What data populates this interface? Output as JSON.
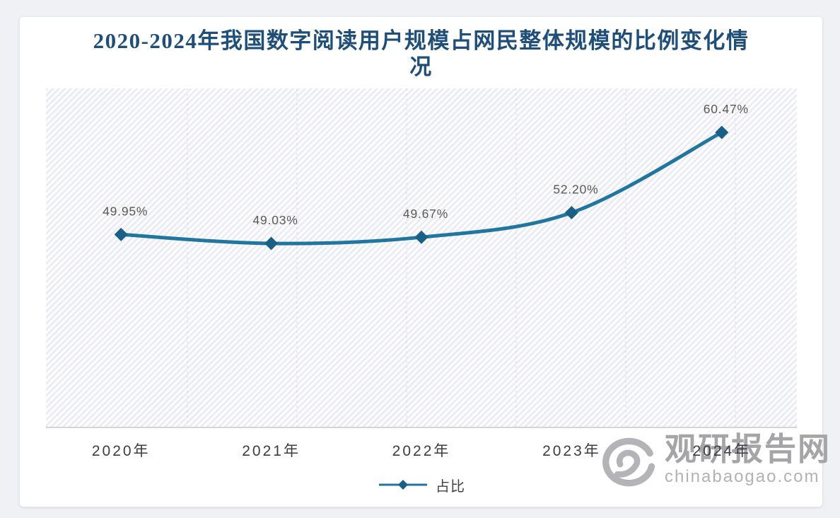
{
  "page": {
    "background_color": "#eff1f5",
    "card_background_color": "#ffffff"
  },
  "chart_data": {
    "type": "line",
    "title": "2020-2024年我国数字阅读用户规模占网民整体规模的比例变化情况",
    "categories": [
      "2020年",
      "2021年",
      "2022年",
      "2023年",
      "2024年"
    ],
    "series": [
      {
        "name": "占比",
        "values": [
          49.95,
          49.03,
          49.67,
          52.2,
          60.47
        ],
        "labels": [
          "49.95%",
          "49.03%",
          "49.67%",
          "52.20%",
          "60.47%"
        ]
      }
    ],
    "xlabel": "",
    "ylabel": "",
    "ylim": [
      30,
      65
    ],
    "y_axis_visible": false,
    "grid": "faint-vertical-dashed",
    "legend_position": "bottom-center",
    "marker_shape": "diamond",
    "smooth": true
  },
  "colors": {
    "title": "#1f4e79",
    "line": "#21769f",
    "marker": "#195f86",
    "data_label": "#595959",
    "axis_label": "#3c3c44",
    "watermark": "#a5a5a8"
  },
  "watermark": {
    "logo": "swirl-logo",
    "name": "观研报告网",
    "url": "chinabaogao.com"
  }
}
